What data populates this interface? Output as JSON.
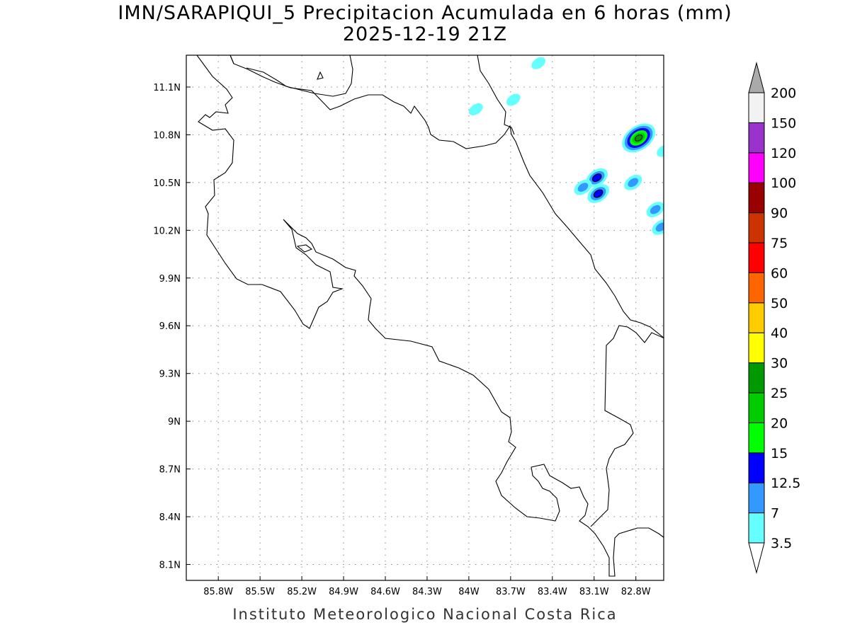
{
  "map": {
    "title_line1": "IMN/SARAPIQUI_5 Precipitacion Acumulada en 6 horas (mm)",
    "title_line2": "2025-12-19 21Z",
    "footer": "Instituto Meteorologico Nacional Costa Rica",
    "lon_range": [
      -86.03,
      -82.6
    ],
    "lat_range": [
      8.0,
      11.3
    ],
    "lat_ticks": [
      {
        "value": 11.1,
        "label": "11.1N"
      },
      {
        "value": 10.8,
        "label": "10.8N"
      },
      {
        "value": 10.5,
        "label": "10.5N"
      },
      {
        "value": 10.2,
        "label": "10.2N"
      },
      {
        "value": 9.9,
        "label": "9.9N"
      },
      {
        "value": 9.6,
        "label": "9.6N"
      },
      {
        "value": 9.3,
        "label": "9.3N"
      },
      {
        "value": 9.0,
        "label": "9N"
      },
      {
        "value": 8.7,
        "label": "8.7N"
      },
      {
        "value": 8.4,
        "label": "8.4N"
      },
      {
        "value": 8.1,
        "label": "8.1N"
      }
    ],
    "lon_ticks": [
      {
        "value": -85.8,
        "label": "85.8W"
      },
      {
        "value": -85.5,
        "label": "85.5W"
      },
      {
        "value": -85.2,
        "label": "85.2W"
      },
      {
        "value": -84.9,
        "label": "84.9W"
      },
      {
        "value": -84.6,
        "label": "84.6W"
      },
      {
        "value": -84.3,
        "label": "84.3W"
      },
      {
        "value": -84.0,
        "label": "84W"
      },
      {
        "value": -83.7,
        "label": "83.7W"
      },
      {
        "value": -83.4,
        "label": "83.4W"
      },
      {
        "value": -83.1,
        "label": "83.1W"
      },
      {
        "value": -82.8,
        "label": "82.8W"
      }
    ],
    "grid": "dotted"
  },
  "colorbar": {
    "labels": [
      "3.5",
      "7",
      "12.5",
      "15",
      "20",
      "25",
      "30",
      "40",
      "50",
      "60",
      "75",
      "90",
      "100",
      "120",
      "150",
      "200"
    ],
    "colors": [
      "#66ffff",
      "#3399ff",
      "#0000ff",
      "#00ff00",
      "#00cc00",
      "#009900",
      "#ffff00",
      "#ffcc00",
      "#ff6600",
      "#ff0000",
      "#cc3300",
      "#990000",
      "#ff00ff",
      "#9933cc",
      "#f2f2f2"
    ],
    "over_color": "#aaaaaa",
    "under_color": "#ffffff"
  },
  "precip_cells": [
    {
      "lon": -82.78,
      "lat": 10.78,
      "value": 25
    },
    {
      "lon": -82.82,
      "lat": 10.5,
      "value": 7
    },
    {
      "lon": -83.08,
      "lat": 10.53,
      "value": 12.5
    },
    {
      "lon": -83.18,
      "lat": 10.47,
      "value": 7
    },
    {
      "lon": -83.07,
      "lat": 10.43,
      "value": 12.5
    },
    {
      "lon": -82.62,
      "lat": 10.22,
      "value": 7
    },
    {
      "lon": -82.66,
      "lat": 10.33,
      "value": 7
    },
    {
      "lon": -83.68,
      "lat": 11.02,
      "value": 3.5
    },
    {
      "lon": -83.95,
      "lat": 10.96,
      "value": 3.5
    },
    {
      "lon": -83.5,
      "lat": 11.25,
      "value": 3.5
    },
    {
      "lon": -82.6,
      "lat": 10.7,
      "value": 3.5
    }
  ]
}
